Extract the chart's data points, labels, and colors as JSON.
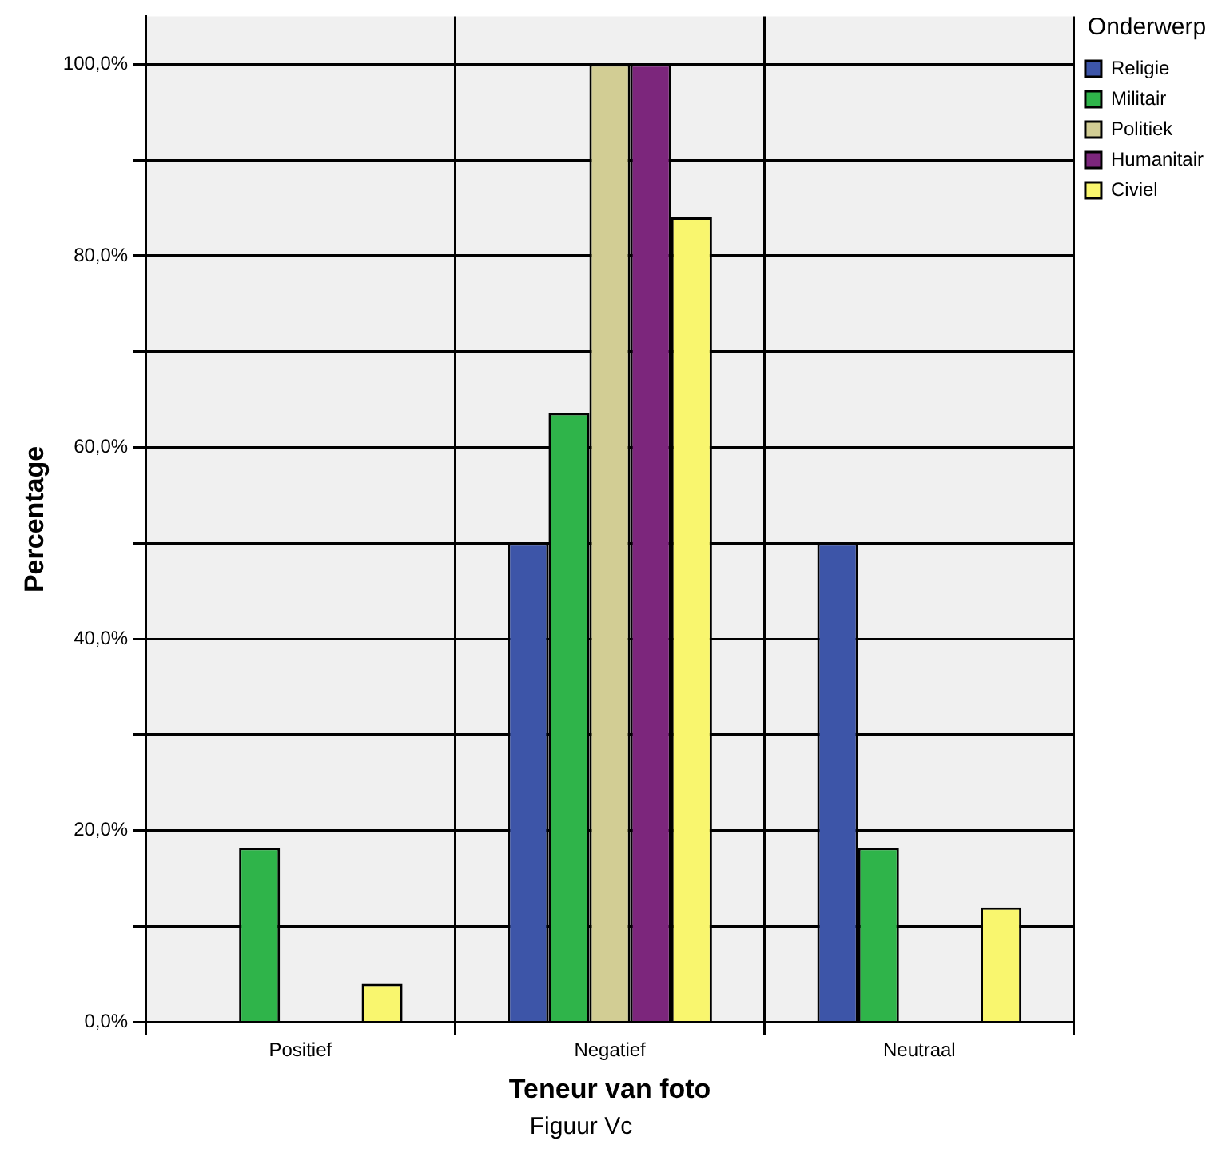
{
  "chart_data": {
    "type": "bar",
    "xlabel": "Teneur van foto",
    "ylabel": "Percentage",
    "legend_title": "Onderwerp",
    "legend": "top right",
    "grid": true,
    "categories": [
      "Positief",
      "Negatief",
      "Neutraal"
    ],
    "series": [
      {
        "name": "Religie",
        "color": "#3d55a8",
        "values": [
          0,
          50,
          50
        ]
      },
      {
        "name": "Militair",
        "color": "#2fb44a",
        "values": [
          18.2,
          63.6,
          18.2
        ]
      },
      {
        "name": "Politiek",
        "color": "#d2cd94",
        "values": [
          0,
          100,
          0
        ]
      },
      {
        "name": "Humanitair",
        "color": "#7c267c",
        "values": [
          0,
          100,
          0
        ]
      },
      {
        "name": "Civiel",
        "color": "#f9f66e",
        "values": [
          4,
          84,
          12
        ]
      }
    ],
    "ylim": [
      0,
      105
    ],
    "yticks": [
      {
        "value": 0,
        "label": "0,0%"
      },
      {
        "value": 10,
        "label": null
      },
      {
        "value": 20,
        "label": "20,0%"
      },
      {
        "value": 30,
        "label": null
      },
      {
        "value": 40,
        "label": "40,0%"
      },
      {
        "value": 50,
        "label": null
      },
      {
        "value": 60,
        "label": "60,0%"
      },
      {
        "value": 70,
        "label": null
      },
      {
        "value": 80,
        "label": "80,0%"
      },
      {
        "value": 90,
        "label": null
      },
      {
        "value": 100,
        "label": "100,0%"
      }
    ],
    "annotations": [
      "Figuur Vc"
    ]
  }
}
